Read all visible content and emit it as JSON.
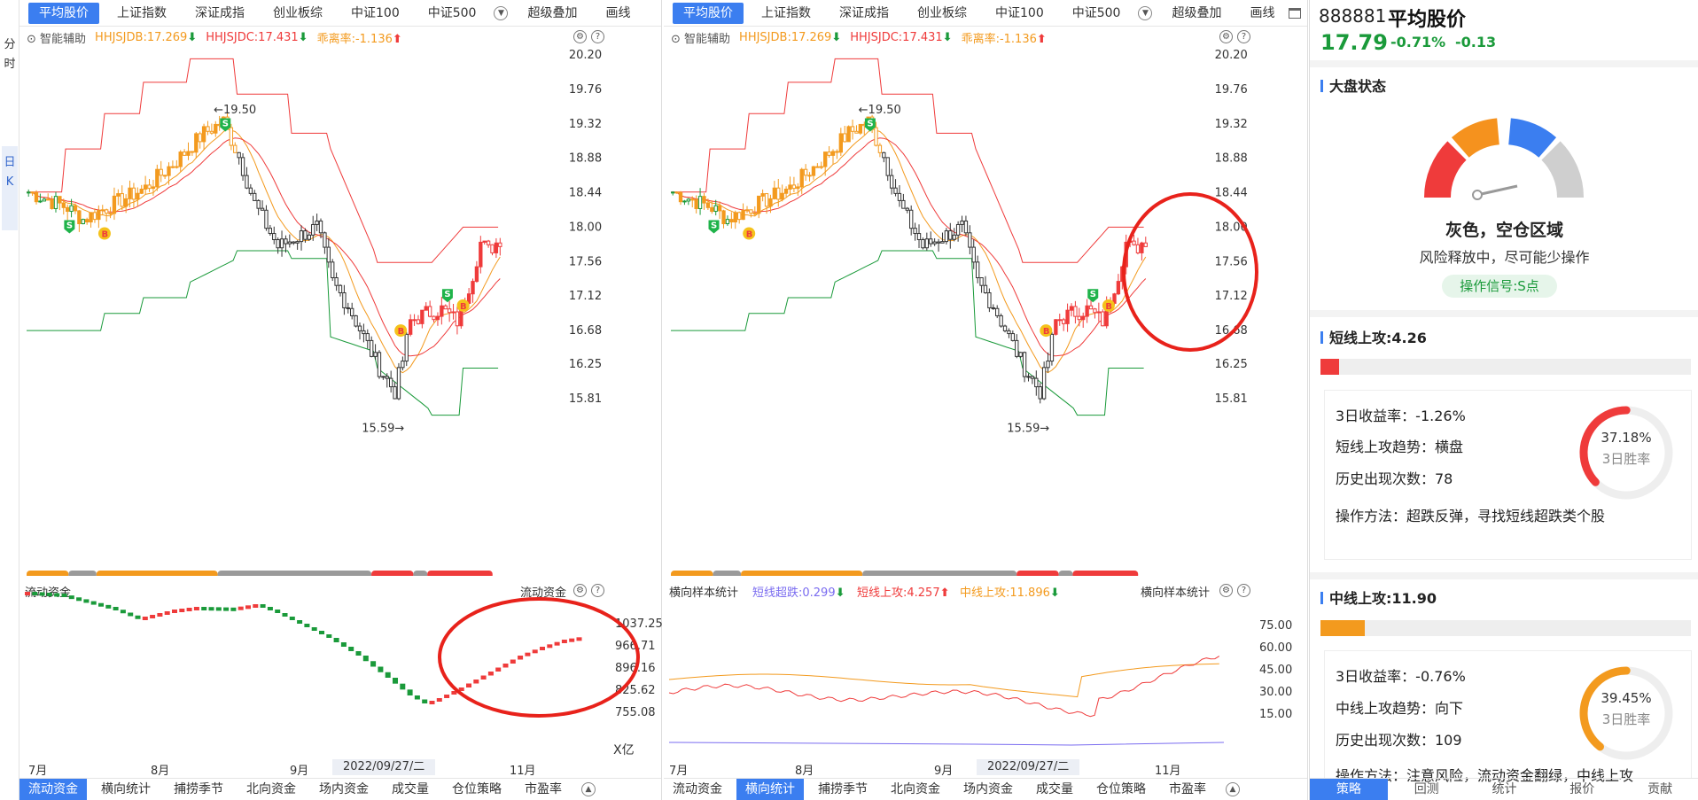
{
  "leftbar": {
    "tab_fenshi": "分时",
    "tab_rik": "日K"
  },
  "top_tabs": [
    "平均股价",
    "上证指数",
    "深证成指",
    "创业板综",
    "中证100",
    "中证500",
    "超级叠加",
    "画线"
  ],
  "indicators": {
    "assist": "智能辅助",
    "hhjsjdb": "HHJSJDB:17.269",
    "hhjsjdc": "HHJSJDC:17.431",
    "deviation": "乖离率:-1.136"
  },
  "price_axis": [
    "20.20",
    "19.76",
    "19.32",
    "18.88",
    "18.44",
    "18.00",
    "17.56",
    "17.12",
    "16.68",
    "16.25",
    "15.81"
  ],
  "annotations": {
    "high": "←19.50",
    "low": "15.59→",
    "sell": "S",
    "buy": "B"
  },
  "panel1_sub": {
    "title": "流动资金",
    "right_title": "流动资金",
    "axis": [
      "1037.25",
      "966.71",
      "896.16",
      "825.62",
      "755.08"
    ],
    "unit": "X亿"
  },
  "panel2_sub": {
    "title": "横向样本统计",
    "short_drop": "短线超跌:0.299",
    "short_up": "短线上攻:4.257",
    "mid_up": "中线上攻:11.896",
    "right_title": "横向样本统计",
    "axis": [
      "75.00",
      "60.00",
      "45.00",
      "30.00",
      "15.00"
    ]
  },
  "xaxis": {
    "jul": "7月",
    "aug": "8月",
    "sep": "9月",
    "date": "2022/09/27/二",
    "nov": "11月"
  },
  "bottom_tabs": [
    "流动资金",
    "横向统计",
    "捕捞季节",
    "北向资金",
    "场内资金",
    "成交量",
    "仓位策略",
    "市盈率"
  ],
  "right": {
    "code": "888881",
    "name": "平均股价",
    "price": "17.79",
    "change_pct": "-0.71%",
    "change": "-0.13",
    "market_title": "大盘状态",
    "state": "灰色，空仓区域",
    "state_desc": "风险释放中，尽可能少操作",
    "signal": "操作信号:S点",
    "short": {
      "title": "短线上攻:4.26",
      "fill": 0.05,
      "ret": "3日收益率：-1.26%",
      "trend": "短线上攻趋势：横盘",
      "count": "历史出现次数：78",
      "method": "操作方法：超跌反弹，寻找短线超跌类个股",
      "rate": "37.18%",
      "rate_lbl": "3日胜率",
      "rate_val": 0.3718
    },
    "mid": {
      "title": "中线上攻:11.90",
      "fill": 0.12,
      "ret": "3日收益率：-0.76%",
      "trend": "中线上攻趋势：向下",
      "count": "历史出现次数：109",
      "method": "操作方法：注意风险，流动资金翻绿，中线上攻",
      "rate": "39.45%",
      "rate_lbl": "3日胜率",
      "rate_val": 0.3945
    },
    "foot_tabs": [
      "策略",
      "回测",
      "统计",
      "报价",
      "贡献"
    ]
  },
  "colors": {
    "accent": "#3b7ef0",
    "up": "#ef3b3b",
    "down": "#1a9a3a",
    "orange": "#f39a1e",
    "gray": "#9a9a9a",
    "circle": "#e8221b"
  }
}
